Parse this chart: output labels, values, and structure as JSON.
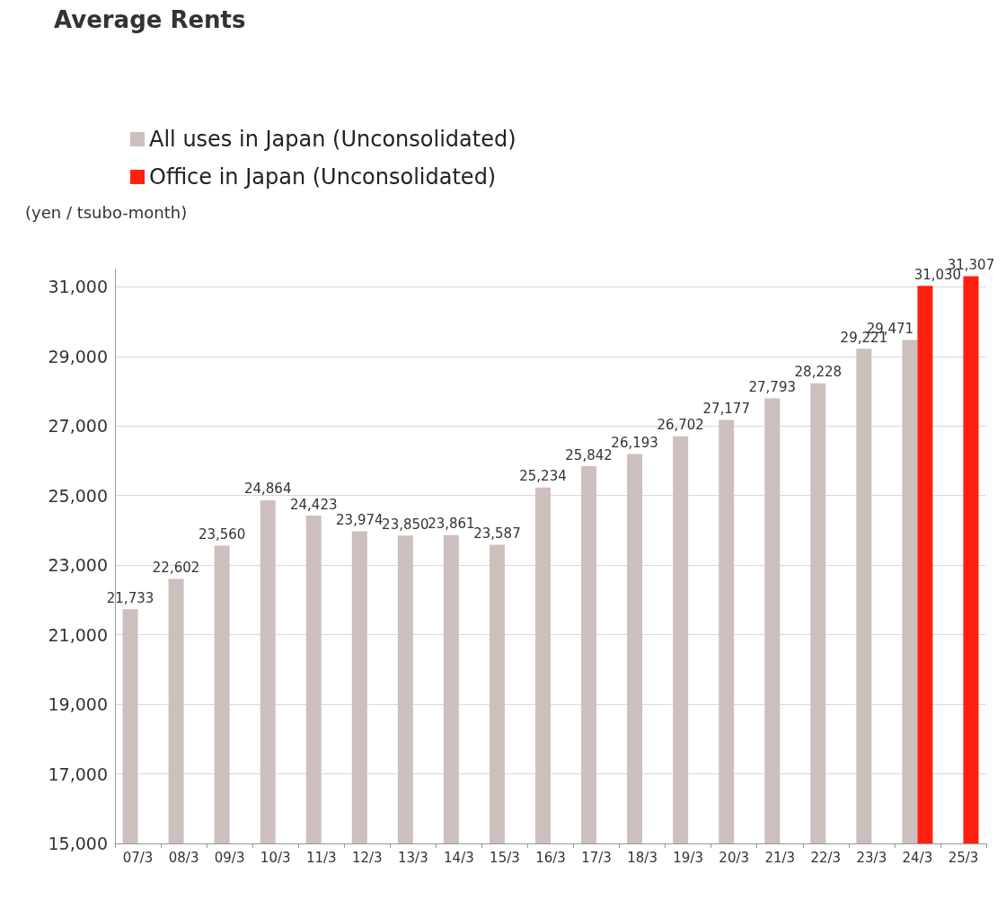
{
  "chart_data": {
    "type": "bar",
    "title": "Average Rents",
    "ylabel": "(yen / tsubo-month)",
    "categories": [
      "07/3",
      "08/3",
      "09/3",
      "10/3",
      "11/3",
      "12/3",
      "13/3",
      "14/3",
      "15/3",
      "16/3",
      "17/3",
      "18/3",
      "19/3",
      "20/3",
      "21/3",
      "22/3",
      "23/3",
      "24/3",
      "25/3"
    ],
    "series": [
      {
        "name": "All uses in Japan (Unconsolidated)",
        "color": "#cdbfbe",
        "values": [
          21733,
          22602,
          23560,
          24864,
          24423,
          23974,
          23850,
          23861,
          23587,
          25234,
          25842,
          26193,
          26702,
          27177,
          27793,
          28228,
          29221,
          29471,
          null
        ],
        "value_labels": [
          "21,733",
          "22,602",
          "23,560",
          "24,864",
          "24,423",
          "23,974",
          "23,850",
          "23,861",
          "23,587",
          "25,234",
          "25,842",
          "26,193",
          "26,702",
          "27,177",
          "27,793",
          "28,228",
          "29,221",
          "29,471",
          null
        ]
      },
      {
        "name": "Office in Japan (Unconsolidated)",
        "color": "#ff2010",
        "values": [
          null,
          null,
          null,
          null,
          null,
          null,
          null,
          null,
          null,
          null,
          null,
          null,
          null,
          null,
          null,
          null,
          null,
          31030,
          31307
        ],
        "value_labels": [
          null,
          null,
          null,
          null,
          null,
          null,
          null,
          null,
          null,
          null,
          null,
          null,
          null,
          null,
          null,
          null,
          null,
          "31,030",
          "31,307"
        ]
      }
    ],
    "ylim": [
      15000,
      31500
    ],
    "yticks": [
      {
        "value": 15000,
        "label": "15,000"
      },
      {
        "value": 17000,
        "label": "17,000"
      },
      {
        "value": 19000,
        "label": "19,000"
      },
      {
        "value": 21000,
        "label": "21,000"
      },
      {
        "value": 23000,
        "label": "23,000"
      },
      {
        "value": 25000,
        "label": "25,000"
      },
      {
        "value": 27000,
        "label": "27,000"
      },
      {
        "value": 29000,
        "label": "29,000"
      },
      {
        "value": 31000,
        "label": "31,000"
      }
    ],
    "grid": "y",
    "legend": "top left"
  }
}
